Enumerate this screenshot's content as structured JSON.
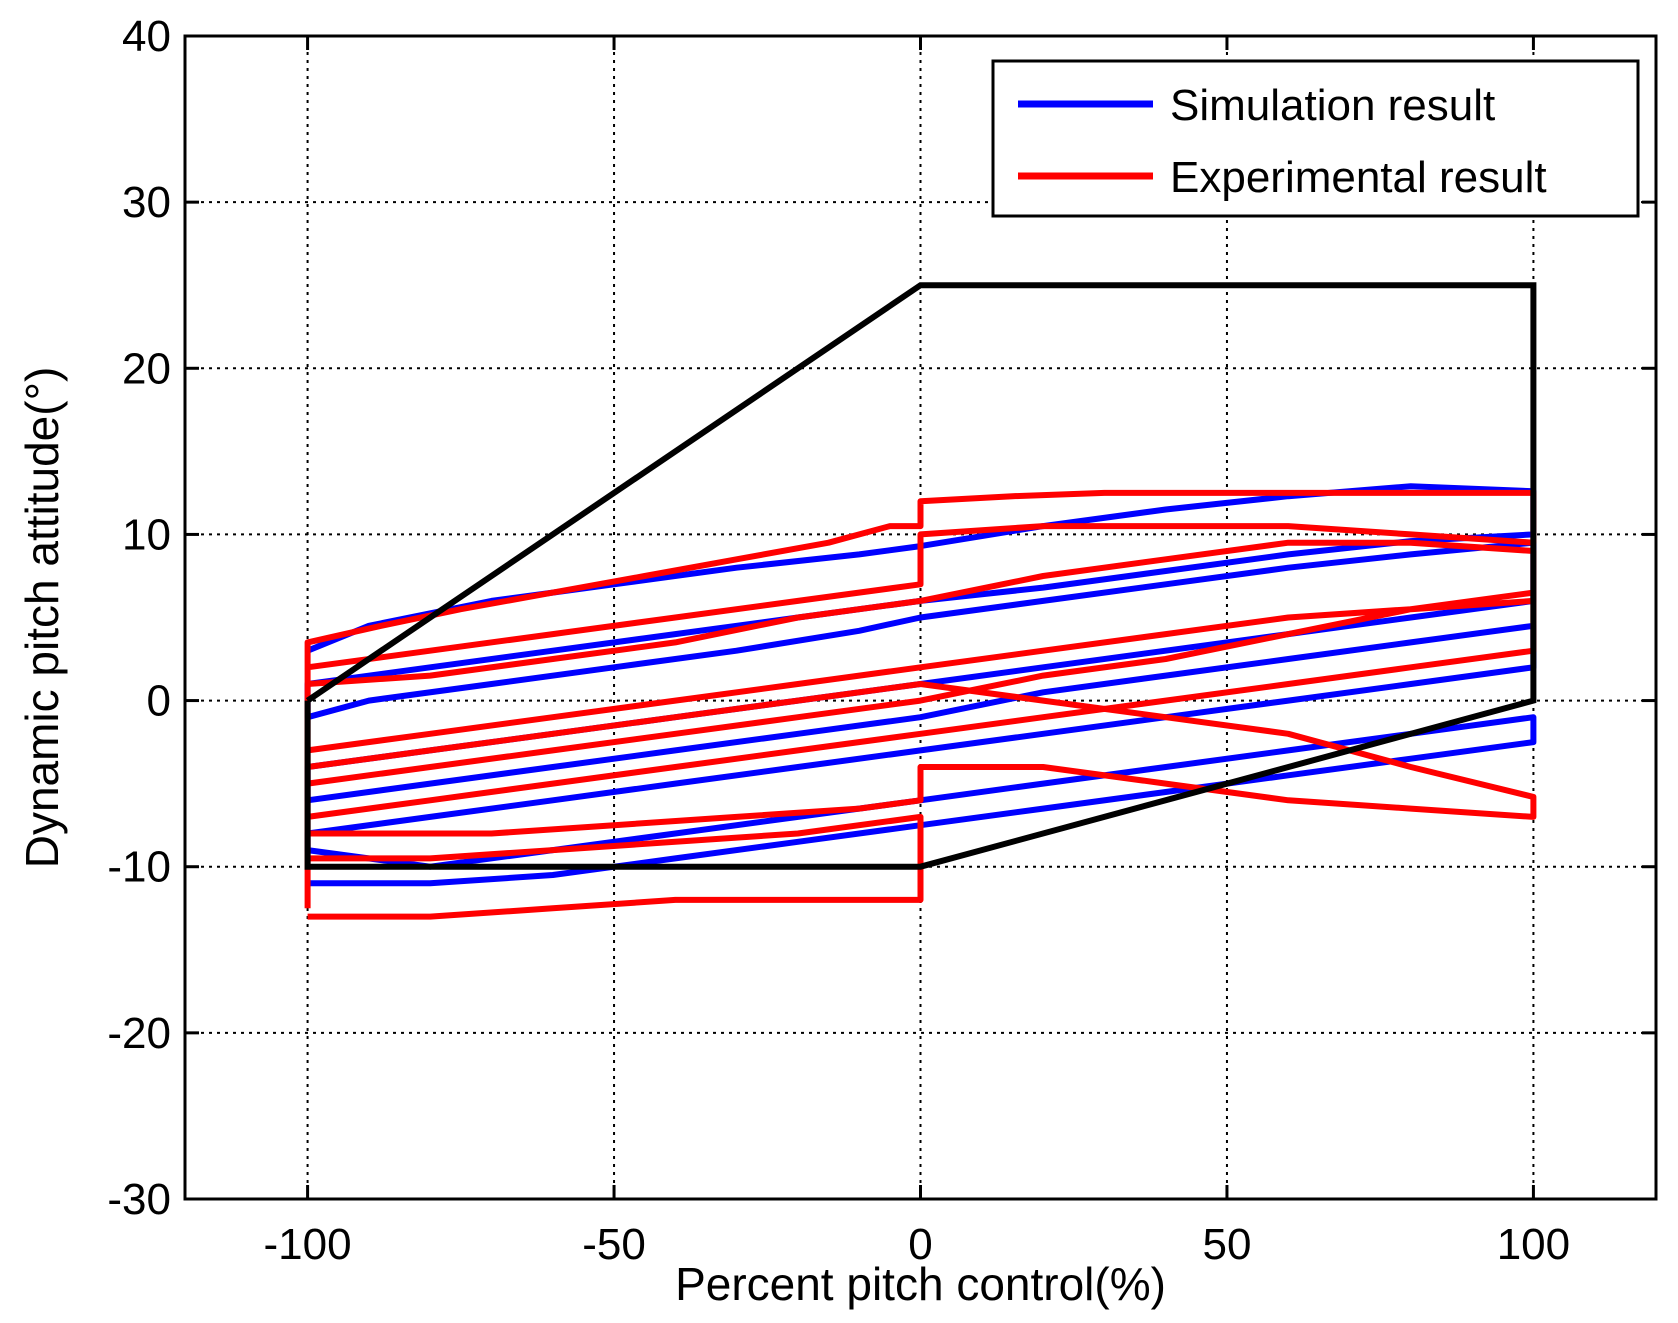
{
  "chart_data": {
    "type": "line",
    "xlabel": "Percent pitch control(%)",
    "ylabel": "Dynamic pitch attitude(°)",
    "xlim": [
      -120,
      120
    ],
    "ylim": [
      -30,
      40
    ],
    "xticks": [
      -100,
      -50,
      0,
      50,
      100
    ],
    "yticks": [
      -30,
      -20,
      -10,
      0,
      10,
      20,
      30,
      40
    ],
    "xtick_labels": [
      "-100",
      "-50",
      "0",
      "50",
      "100"
    ],
    "ytick_labels": [
      "-30",
      "-20",
      "-10",
      "0",
      "10",
      "20",
      "30",
      "40"
    ],
    "grid": true,
    "legend_position": "top-right",
    "legend": [
      {
        "label": "Simulation result",
        "color": "#0000ff"
      },
      {
        "label": "Experimental result",
        "color": "#ff0000"
      }
    ],
    "envelope": {
      "color": "#000000",
      "x": [
        -100,
        0,
        100,
        100,
        0,
        -100,
        -100
      ],
      "y": [
        0,
        25,
        25,
        0,
        -10,
        -10,
        0
      ]
    },
    "series": [
      {
        "legend_index": 0,
        "color": "#0000ff",
        "x": [
          -100,
          -90,
          -70,
          -50,
          -30,
          -10,
          0,
          20,
          40,
          60,
          80,
          100,
          100,
          80,
          60,
          40,
          20,
          0,
          -20,
          -40,
          -60,
          -80,
          -100,
          -100,
          -90,
          -70,
          -50,
          -30,
          -10,
          0,
          20,
          40,
          60,
          80,
          100,
          100,
          80,
          60,
          40,
          20,
          0,
          -20,
          -40,
          -60,
          -80,
          -100,
          -100,
          -80,
          -60,
          -40,
          -20,
          0,
          20,
          40,
          60,
          80,
          100,
          100,
          80,
          60,
          40,
          20,
          0,
          -20,
          -40,
          -60,
          -80,
          -100,
          -100,
          -80,
          -60,
          -40,
          -20,
          0,
          20,
          40,
          60,
          80,
          100,
          100,
          80,
          60,
          40,
          20,
          0,
          -20,
          -40,
          -60,
          -80,
          -100
        ],
        "y": [
          3,
          4.5,
          6,
          7,
          8,
          8.8,
          9.3,
          10.5,
          11.5,
          12.3,
          12.9,
          12.6,
          10,
          9.6,
          8.8,
          7.8,
          6.8,
          6,
          5,
          4,
          3,
          2,
          1,
          -1,
          0,
          1,
          2,
          3,
          4.2,
          5,
          6,
          7,
          8,
          8.8,
          9.5,
          6,
          5,
          4,
          3,
          2,
          1,
          0,
          -1,
          -2,
          -3,
          -4,
          -6,
          -5,
          -4,
          -3,
          -2,
          -1,
          0.5,
          1.5,
          2.5,
          3.5,
          4.5,
          2,
          1,
          0,
          -1,
          -2,
          -3,
          -4,
          -5,
          -6,
          -7,
          -8,
          -9,
          -10,
          -9,
          -8,
          -7,
          -6,
          -5,
          -4,
          -3,
          -2,
          -1,
          -2.5,
          -3.5,
          -4.5,
          -5.5,
          -6.5,
          -7.5,
          -8.5,
          -9.5,
          -10.5,
          -11,
          -11
        ]
      },
      {
        "legend_index": 1,
        "color": "#ff0000",
        "x": [
          -100,
          -100,
          -88,
          -75,
          -60,
          -45,
          -30,
          -15,
          -5,
          0,
          0,
          15,
          30,
          50,
          70,
          85,
          100,
          100,
          80,
          60,
          40,
          20,
          0,
          0,
          -20,
          -40,
          -60,
          -80,
          -100,
          -100,
          -80,
          -60,
          -40,
          -20,
          0,
          20,
          40,
          60,
          80,
          100,
          100,
          80,
          60,
          40,
          20,
          0,
          -20,
          -40,
          -60,
          -80,
          -100,
          -100,
          -80,
          -60,
          -40,
          -20,
          0,
          20,
          40,
          60,
          80,
          100,
          100,
          80,
          60,
          40,
          20,
          0,
          -20,
          -40,
          -60,
          -80,
          -100,
          -100,
          -85,
          -70,
          -50,
          -30,
          -10,
          0,
          0,
          20,
          40,
          60,
          80,
          100,
          100,
          80,
          60,
          40,
          20,
          0,
          -20,
          -40,
          -60,
          -80,
          -100,
          -100,
          -80,
          -60,
          -40,
          -20,
          0,
          0,
          -20,
          -40,
          -60,
          -80,
          -100
        ],
        "y": [
          -12.5,
          3.5,
          4.5,
          5.5,
          6.5,
          7.5,
          8.5,
          9.5,
          10.5,
          10.5,
          12,
          12.3,
          12.5,
          12.5,
          12.5,
          12.5,
          12.5,
          9.5,
          10,
          10.5,
          10.5,
          10.5,
          10,
          7,
          6,
          5,
          4,
          3,
          2,
          1,
          1.5,
          2.5,
          3.5,
          5,
          6,
          7.5,
          8.5,
          9.5,
          9.5,
          9,
          6,
          5.5,
          5,
          4,
          3,
          2,
          1,
          0,
          -1,
          -2,
          -3,
          -5,
          -4,
          -3,
          -2,
          -1,
          0,
          1.5,
          2.5,
          4,
          5.5,
          6.5,
          3,
          2,
          1,
          0,
          -1,
          -2,
          -3,
          -4,
          -5,
          -6,
          -7,
          -8,
          -8,
          -8,
          -7.5,
          -7,
          -6.5,
          -6,
          -4,
          -4,
          -5,
          -6,
          -6.5,
          -7,
          -5.8,
          -4,
          -2,
          -1,
          0,
          1,
          0,
          -1,
          -2,
          -3,
          -4,
          -9.5,
          -9.5,
          -9,
          -8.5,
          -8,
          -7,
          -12,
          -12,
          -12,
          -12.5,
          -13,
          -13
        ]
      }
    ]
  }
}
